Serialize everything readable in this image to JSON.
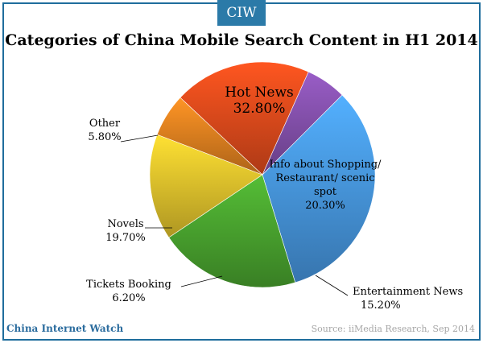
{
  "badge": "CIW",
  "footer": {
    "brand": "China Internet Watch",
    "source": "Source: iiMedia Research, Sep 2014"
  },
  "chart_data": {
    "type": "pie",
    "title": "Categories of China Mobile Search Content in H1 2014",
    "slices": [
      {
        "label_lines": [
          "Hot News"
        ],
        "value_text": "32.80%",
        "value": 32.8,
        "color": "#4da3f2"
      },
      {
        "label_lines": [
          "Info about Shopping/",
          "Restaurant/ scenic",
          "spot"
        ],
        "value_text": "20.30%",
        "value": 20.3,
        "color": "#4fb032"
      },
      {
        "label_lines": [
          "Entertainment News"
        ],
        "value_text": "15.20%",
        "value": 15.2,
        "color": "#f2d02f"
      },
      {
        "label_lines": [
          "Tickets Booking"
        ],
        "value_text": "6.20%",
        "value": 6.2,
        "color": "#f08a22"
      },
      {
        "label_lines": [
          "Novels"
        ],
        "value_text": "19.70%",
        "value": 19.7,
        "color": "#f0501e"
      },
      {
        "label_lines": [
          "Other"
        ],
        "value_text": "5.80%",
        "value": 5.8,
        "color": "#8e56b8"
      }
    ],
    "start_angle_deg": -45,
    "direction": "clockwise"
  }
}
